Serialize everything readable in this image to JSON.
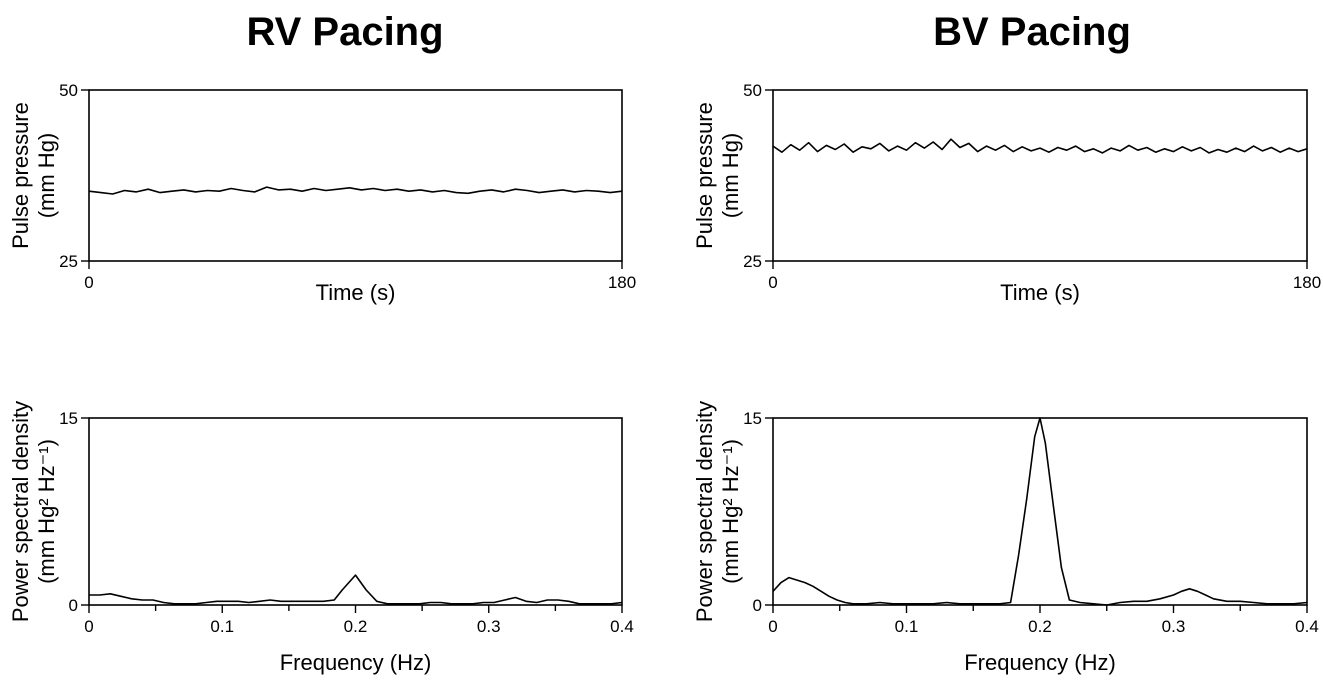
{
  "chart_data": [
    {
      "type": "line",
      "panel": "RV Pacing — pulse pressure",
      "title": "RV Pacing",
      "xlabel": "Time (s)",
      "ylabel": [
        "Pulse pressure",
        "(mm Hg)"
      ],
      "xlim": [
        0,
        180
      ],
      "ylim": [
        25,
        50
      ],
      "x_tick_labels": [
        "0",
        "180"
      ],
      "y_tick_labels": [
        "25",
        "50"
      ],
      "x_ticks": [
        0,
        180
      ],
      "y_ticks": [
        25,
        50
      ],
      "grid": false,
      "series": [
        {
          "x": [
            0,
            4,
            8,
            12,
            16,
            20,
            24,
            28,
            32,
            36,
            40,
            44,
            48,
            52,
            56,
            60,
            64,
            68,
            72,
            76,
            80,
            84,
            88,
            92,
            96,
            100,
            104,
            108,
            112,
            116,
            120,
            124,
            128,
            132,
            136,
            140,
            144,
            148,
            152,
            156,
            160,
            164,
            168,
            172,
            176,
            180
          ],
          "y": [
            35.2,
            35.0,
            34.8,
            35.3,
            35.1,
            35.5,
            35.0,
            35.2,
            35.4,
            35.1,
            35.3,
            35.2,
            35.6,
            35.3,
            35.1,
            35.8,
            35.4,
            35.5,
            35.2,
            35.6,
            35.3,
            35.5,
            35.7,
            35.4,
            35.6,
            35.3,
            35.5,
            35.2,
            35.4,
            35.1,
            35.3,
            35.0,
            34.9,
            35.2,
            35.4,
            35.1,
            35.5,
            35.3,
            35.0,
            35.2,
            35.4,
            35.1,
            35.3,
            35.2,
            35.0,
            35.2
          ]
        }
      ]
    },
    {
      "type": "line",
      "panel": "BV Pacing — pulse pressure",
      "title": "BV Pacing",
      "xlabel": "Time (s)",
      "ylabel": [
        "Pulse pressure",
        "(mm Hg)"
      ],
      "xlim": [
        0,
        180
      ],
      "ylim": [
        25,
        50
      ],
      "x_tick_labels": [
        "0",
        "180"
      ],
      "y_tick_labels": [
        "25",
        "50"
      ],
      "x_ticks": [
        0,
        180
      ],
      "y_ticks": [
        25,
        50
      ],
      "grid": false,
      "series": [
        {
          "x": [
            0,
            3,
            6,
            9,
            12,
            15,
            18,
            21,
            24,
            27,
            30,
            33,
            36,
            39,
            42,
            45,
            48,
            51,
            54,
            57,
            60,
            63,
            66,
            69,
            72,
            75,
            78,
            81,
            84,
            87,
            90,
            93,
            96,
            99,
            102,
            105,
            108,
            111,
            114,
            117,
            120,
            123,
            126,
            129,
            132,
            135,
            138,
            141,
            144,
            147,
            150,
            153,
            156,
            159,
            162,
            165,
            168,
            171,
            174,
            177,
            180
          ],
          "y": [
            41.8,
            40.9,
            42.0,
            41.2,
            42.3,
            41.0,
            41.9,
            41.3,
            42.1,
            40.9,
            41.7,
            41.4,
            42.2,
            41.1,
            41.8,
            41.2,
            42.3,
            41.5,
            42.4,
            41.3,
            42.8,
            41.6,
            42.2,
            41.0,
            41.8,
            41.2,
            41.9,
            41.0,
            41.7,
            41.1,
            41.5,
            40.9,
            41.6,
            41.2,
            41.8,
            41.0,
            41.4,
            40.8,
            41.5,
            41.1,
            41.9,
            41.2,
            41.6,
            40.9,
            41.4,
            41.0,
            41.7,
            41.1,
            41.6,
            40.8,
            41.3,
            40.9,
            41.5,
            41.0,
            41.8,
            41.1,
            41.6,
            40.9,
            41.5,
            41.0,
            41.4
          ]
        }
      ]
    },
    {
      "type": "line",
      "panel": "RV Pacing — power spectral density",
      "xlabel": "Frequency (Hz)",
      "ylabel": [
        "Power spectral density",
        "(mm Hg² Hz⁻¹)"
      ],
      "xlim": [
        0,
        0.4
      ],
      "ylim": [
        0,
        15
      ],
      "x_tick_labels": [
        "0",
        "0.1",
        "0.2",
        "0.3",
        "0.4"
      ],
      "y_tick_labels": [
        "0",
        "15"
      ],
      "x_ticks": [
        0,
        0.1,
        0.2,
        0.3,
        0.4
      ],
      "y_ticks": [
        0,
        15
      ],
      "grid": false,
      "series": [
        {
          "x": [
            0,
            0.008,
            0.016,
            0.024,
            0.032,
            0.04,
            0.048,
            0.056,
            0.064,
            0.072,
            0.08,
            0.088,
            0.096,
            0.104,
            0.112,
            0.12,
            0.128,
            0.136,
            0.144,
            0.152,
            0.16,
            0.168,
            0.176,
            0.184,
            0.19,
            0.2,
            0.208,
            0.216,
            0.224,
            0.232,
            0.24,
            0.248,
            0.256,
            0.264,
            0.272,
            0.28,
            0.288,
            0.296,
            0.304,
            0.312,
            0.32,
            0.328,
            0.336,
            0.344,
            0.352,
            0.36,
            0.368,
            0.376,
            0.384,
            0.392,
            0.4
          ],
          "y": [
            0.8,
            0.8,
            0.9,
            0.7,
            0.5,
            0.4,
            0.4,
            0.2,
            0.1,
            0.1,
            0.1,
            0.2,
            0.3,
            0.3,
            0.3,
            0.2,
            0.3,
            0.4,
            0.3,
            0.3,
            0.3,
            0.3,
            0.3,
            0.4,
            1.2,
            2.4,
            1.2,
            0.3,
            0.1,
            0.1,
            0.1,
            0.1,
            0.2,
            0.2,
            0.1,
            0.1,
            0.1,
            0.2,
            0.2,
            0.4,
            0.6,
            0.3,
            0.2,
            0.4,
            0.4,
            0.3,
            0.1,
            0.1,
            0.1,
            0.1,
            0.2
          ]
        }
      ]
    },
    {
      "type": "line",
      "panel": "BV Pacing — power spectral density",
      "xlabel": "Frequency (Hz)",
      "ylabel": [
        "Power spectral density",
        "(mm Hg² Hz⁻¹)"
      ],
      "xlim": [
        0,
        0.4
      ],
      "ylim": [
        0,
        15
      ],
      "x_tick_labels": [
        "0",
        "0.1",
        "0.2",
        "0.3",
        "0.4"
      ],
      "y_tick_labels": [
        "0",
        "15"
      ],
      "x_ticks": [
        0,
        0.1,
        0.2,
        0.3,
        0.4
      ],
      "y_ticks": [
        0,
        15
      ],
      "grid": false,
      "series": [
        {
          "x": [
            0,
            0.006,
            0.012,
            0.018,
            0.024,
            0.03,
            0.036,
            0.042,
            0.048,
            0.054,
            0.06,
            0.07,
            0.08,
            0.09,
            0.1,
            0.11,
            0.12,
            0.13,
            0.14,
            0.15,
            0.16,
            0.17,
            0.178,
            0.184,
            0.19,
            0.196,
            0.2,
            0.204,
            0.21,
            0.216,
            0.222,
            0.23,
            0.24,
            0.25,
            0.26,
            0.27,
            0.28,
            0.29,
            0.3,
            0.306,
            0.312,
            0.318,
            0.324,
            0.33,
            0.34,
            0.35,
            0.36,
            0.37,
            0.38,
            0.39,
            0.4
          ],
          "y": [
            1.1,
            1.8,
            2.2,
            2.0,
            1.8,
            1.5,
            1.1,
            0.7,
            0.4,
            0.2,
            0.1,
            0.1,
            0.2,
            0.1,
            0.1,
            0.1,
            0.1,
            0.2,
            0.1,
            0.1,
            0.1,
            0.1,
            0.2,
            4.0,
            8.5,
            13.5,
            15.0,
            13.0,
            8.0,
            3.0,
            0.4,
            0.2,
            0.1,
            0.0,
            0.2,
            0.3,
            0.3,
            0.5,
            0.8,
            1.1,
            1.3,
            1.1,
            0.8,
            0.5,
            0.3,
            0.3,
            0.2,
            0.1,
            0.1,
            0.1,
            0.2
          ]
        }
      ]
    }
  ]
}
